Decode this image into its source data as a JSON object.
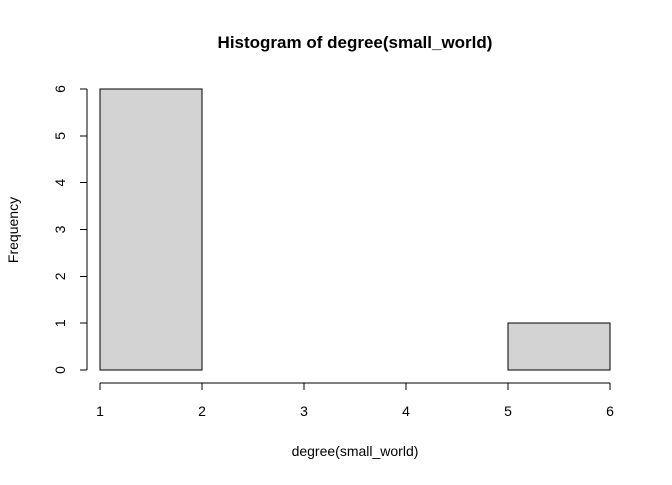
{
  "chart_data": {
    "type": "bar",
    "title": "Histogram of degree(small_world)",
    "xlabel": "degree(small_world)",
    "ylabel": "Frequency",
    "bins": [
      {
        "start": 1,
        "end": 2,
        "count": 6
      },
      {
        "start": 2,
        "end": 3,
        "count": 0
      },
      {
        "start": 3,
        "end": 4,
        "count": 0
      },
      {
        "start": 4,
        "end": 5,
        "count": 0
      },
      {
        "start": 5,
        "end": 6,
        "count": 1
      }
    ],
    "x_ticks": [
      "1",
      "2",
      "3",
      "4",
      "5",
      "6"
    ],
    "y_ticks": [
      "0",
      "1",
      "2",
      "3",
      "4",
      "5",
      "6"
    ],
    "xlim": [
      1,
      6
    ],
    "ylim": [
      0,
      6
    ],
    "grid": false,
    "bar_fill": "#d3d3d3",
    "bar_stroke": "#000000"
  }
}
